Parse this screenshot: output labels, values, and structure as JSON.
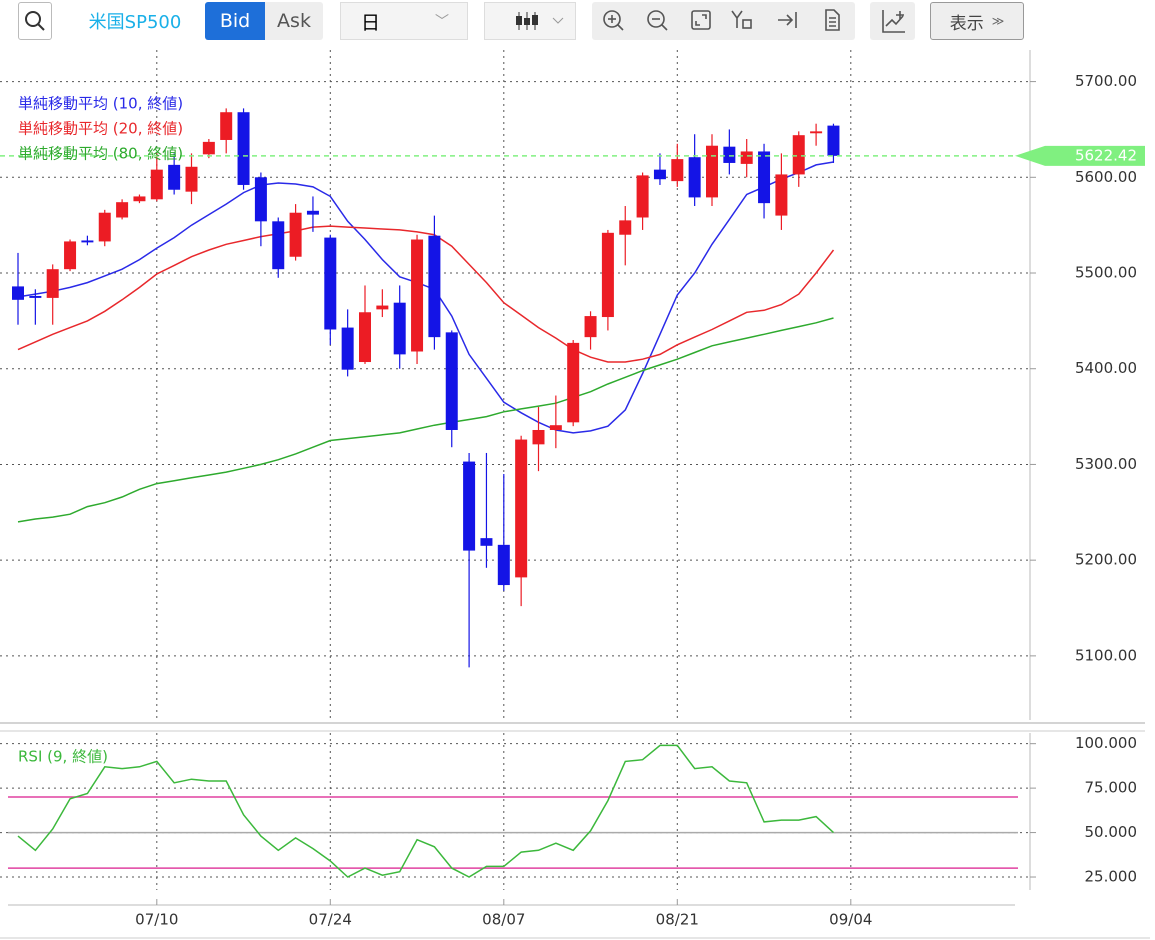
{
  "toolbar": {
    "symbol": "米国SP500",
    "bid": "Bid",
    "ask": "Ask",
    "period": "日",
    "display": "表示"
  },
  "chart_data": [
    {
      "type": "candlestick",
      "categories": [
        null,
        null,
        null,
        null,
        null,
        null,
        null,
        null,
        "07/10",
        null,
        null,
        null,
        null,
        null,
        null,
        null,
        null,
        null,
        "07/24",
        null,
        null,
        null,
        null,
        null,
        null,
        null,
        null,
        null,
        "08/07",
        null,
        null,
        null,
        null,
        null,
        null,
        null,
        null,
        null,
        "08/21",
        null,
        null,
        null,
        null,
        null,
        null,
        null,
        null,
        null,
        "09/04"
      ],
      "open": [
        5486,
        5476,
        5474,
        5504,
        5534,
        5533,
        5558,
        5575,
        5577,
        5613,
        5585,
        5624,
        5639,
        5668,
        5600,
        5554,
        5517,
        5565,
        5537,
        5443,
        5407,
        5462,
        5469,
        5418,
        5539,
        5438,
        5303,
        5223,
        5216,
        5182,
        5321,
        5336,
        5344,
        5433,
        5454,
        5540,
        5558,
        5608,
        5596,
        5621,
        5579,
        5632,
        5614,
        5627,
        5560,
        5603,
        5646,
        5654,
        null
      ],
      "high": [
        5521,
        5483,
        5509,
        5535,
        5539,
        5566,
        5577,
        5582,
        5625,
        5625,
        5625,
        5640,
        5672,
        5672,
        5605,
        5558,
        5572,
        5580,
        5540,
        5462,
        5487,
        5483,
        5487,
        5540,
        5560,
        5440,
        5312,
        5312,
        5290,
        5330,
        5360,
        5372,
        5430,
        5460,
        5545,
        5570,
        5605,
        5625,
        5635,
        5645,
        5645,
        5650,
        5640,
        5635,
        5625,
        5648,
        5656,
        5656,
        null
      ],
      "low": [
        5446,
        5446,
        5446,
        5502,
        5529,
        5528,
        5556,
        5573,
        5575,
        5582,
        5572,
        5620,
        5625,
        5587,
        5528,
        5495,
        5513,
        5543,
        5425,
        5392,
        5405,
        5454,
        5400,
        5405,
        5420,
        5318,
        5088,
        5192,
        5168,
        5152,
        5293,
        5317,
        5340,
        5420,
        5440,
        5508,
        5545,
        5592,
        5590,
        5570,
        5570,
        5603,
        5600,
        5557,
        5545,
        5590,
        5633,
        5615,
        null
      ],
      "close": [
        5472,
        5474,
        5504,
        5533,
        5532,
        5563,
        5574,
        5580,
        5608,
        5587,
        5611,
        5637,
        5668,
        5592,
        5554,
        5504,
        5563,
        5561,
        5441,
        5399,
        5459,
        5466,
        5415,
        5535,
        5433,
        5336,
        5210,
        5215,
        5174,
        5326,
        5336,
        5341,
        5427,
        5455,
        5542,
        5555,
        5602,
        5598,
        5619,
        5579,
        5633,
        5615,
        5627,
        5573,
        5603,
        5644,
        5648,
        5622.42,
        null
      ],
      "up_color": "#ec1c24",
      "down_color": "#1414e6",
      "last_price_color": "#80f080",
      "series": [
        {
          "name": "単純移動平均 (10, 終値)",
          "color": "#2a2ae8",
          "values": [
            5475,
            5478,
            5481,
            5485,
            5490,
            5497,
            5504,
            5514,
            5526,
            5537,
            5550,
            5561,
            5572,
            5584,
            5592,
            5594,
            5593,
            5590,
            5580,
            5554,
            5535,
            5514,
            5496,
            5490,
            5483,
            5455,
            5415,
            5390,
            5365,
            5354,
            5344,
            5336,
            5333,
            5335,
            5340,
            5357,
            5395,
            5436,
            5477,
            5500,
            5530,
            5556,
            5582,
            5590,
            5598,
            5605,
            5613,
            5616,
            null
          ]
        },
        {
          "name": "単純移動平均 (20, 終値)",
          "color": "#e8282c",
          "values": [
            5420,
            5428,
            5436,
            5443,
            5450,
            5460,
            5472,
            5485,
            5499,
            5508,
            5517,
            5524,
            5530,
            5534,
            5538,
            5541,
            5544,
            5548,
            5549,
            5548,
            5547,
            5546,
            5545,
            5543,
            5540,
            5528,
            5509,
            5490,
            5469,
            5456,
            5443,
            5432,
            5420,
            5412,
            5407,
            5407,
            5410,
            5415,
            5425,
            5433,
            5441,
            5450,
            5459,
            5461,
            5467,
            5478,
            5500,
            5524,
            null
          ]
        },
        {
          "name": "単純移動平均 (80, 終値)",
          "color": "#2eaa2e",
          "values": [
            5240,
            5243,
            5245,
            5248,
            5256,
            5260,
            5266,
            5274,
            5280,
            5283,
            5286,
            5289,
            5292,
            5296,
            5300,
            5305,
            5311,
            5318,
            5325,
            5327,
            5329,
            5331,
            5333,
            5337,
            5341,
            5344,
            5347,
            5350,
            5355,
            5358,
            5361,
            5364,
            5370,
            5376,
            5384,
            5391,
            5398,
            5404,
            5410,
            5417,
            5424,
            5428,
            5432,
            5436,
            5440,
            5444,
            5448,
            5453,
            null
          ]
        }
      ],
      "ylim": [
        5033,
        5733
      ],
      "yticks": [
        {
          "value": 5100,
          "label": "5100.00"
        },
        {
          "value": 5200,
          "label": "5200.00"
        },
        {
          "value": 5300,
          "label": "5300.00"
        },
        {
          "value": 5400,
          "label": "5400.00"
        },
        {
          "value": 5500,
          "label": "5500.00"
        },
        {
          "value": 5600,
          "label": "5600.00"
        },
        {
          "value": 5700,
          "label": "5700.00"
        }
      ],
      "grid": true
    },
    {
      "type": "line",
      "series": [
        {
          "name": "RSI (9, 終値)",
          "color": "#3cb83c",
          "values": [
            48,
            40,
            52,
            69,
            72,
            87,
            86,
            87,
            90,
            78,
            80,
            79,
            79,
            60,
            48,
            40,
            47,
            41,
            34,
            25,
            30,
            26,
            28,
            46,
            42,
            30,
            25,
            31,
            31,
            39,
            40,
            44,
            40,
            51,
            68,
            90,
            91,
            99,
            99,
            86,
            87,
            79,
            78,
            56,
            57,
            57,
            59,
            50,
            null
          ]
        }
      ],
      "reference_lines": [
        {
          "value": 70,
          "color": "#e040a0"
        },
        {
          "value": 30,
          "color": "#e040a0"
        },
        {
          "value": 50,
          "color": "#aaaaaa"
        }
      ],
      "ylim": [
        17.7,
        106
      ],
      "yticks": [
        {
          "value": 25,
          "label": "25.000"
        },
        {
          "value": 50,
          "label": "50.000"
        },
        {
          "value": 75,
          "label": "75.000"
        },
        {
          "value": 100,
          "label": "100.000"
        }
      ],
      "grid": true
    }
  ]
}
